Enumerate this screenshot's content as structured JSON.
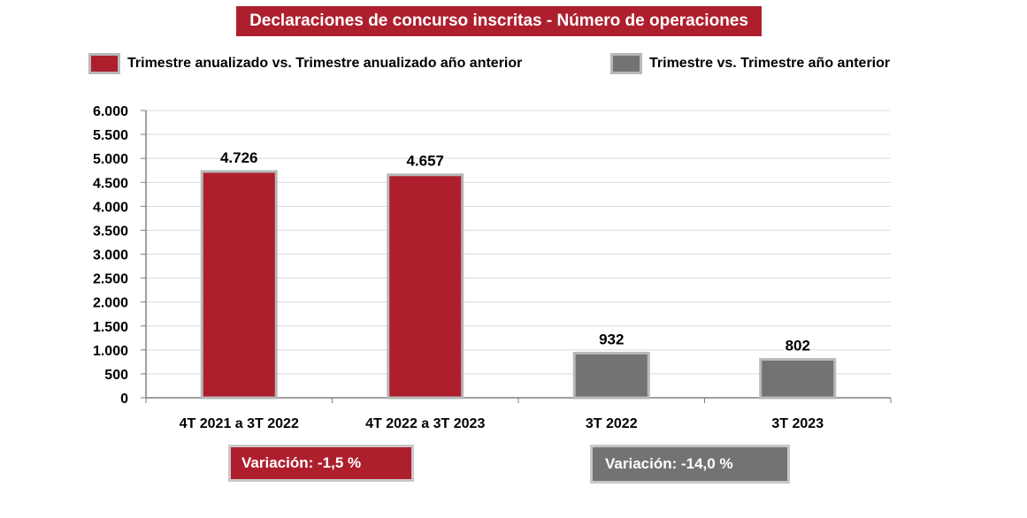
{
  "title": "Declaraciones de concurso inscritas - Número de operaciones",
  "legend": [
    {
      "label": "Trimestre anualizado vs. Trimestre anualizado año anterior",
      "color": "#ae1f2e"
    },
    {
      "label": "Trimestre vs. Trimestre año anterior",
      "color": "#737373"
    }
  ],
  "chart_data": {
    "type": "bar",
    "title": "Declaraciones de concurso inscritas - Número de operaciones",
    "categories": [
      "4T 2021 a 3T 2022",
      "4T 2022 a 3T 2023",
      "3T 2022",
      "3T 2023"
    ],
    "values": [
      4726,
      4657,
      932,
      802
    ],
    "value_labels": [
      "4.726",
      "4.657",
      "932",
      "802"
    ],
    "bar_colors": [
      "#ae1f2e",
      "#ae1f2e",
      "#737373",
      "#737373"
    ],
    "series": [
      {
        "name": "Trimestre anualizado vs. Trimestre anualizado año anterior",
        "values": [
          4726,
          4657,
          null,
          null
        ]
      },
      {
        "name": "Trimestre vs. Trimestre año anterior",
        "values": [
          null,
          null,
          932,
          802
        ]
      }
    ],
    "ylim": [
      0,
      6000
    ],
    "yticks": [
      0,
      500,
      1000,
      1500,
      2000,
      2500,
      3000,
      3500,
      4000,
      4500,
      5000,
      5500,
      6000
    ],
    "ytick_labels": [
      "0",
      "500",
      "1.000",
      "1.500",
      "2.000",
      "2.500",
      "3.000",
      "3.500",
      "4.000",
      "4.500",
      "5.000",
      "5.500",
      "6.000"
    ],
    "grid": true,
    "legend_position": "top"
  },
  "variations": [
    {
      "label": "Variación:  -1,5 %",
      "color": "#ae1f2e"
    },
    {
      "label": "Variación: -14,0 %",
      "color": "#737373"
    }
  ]
}
